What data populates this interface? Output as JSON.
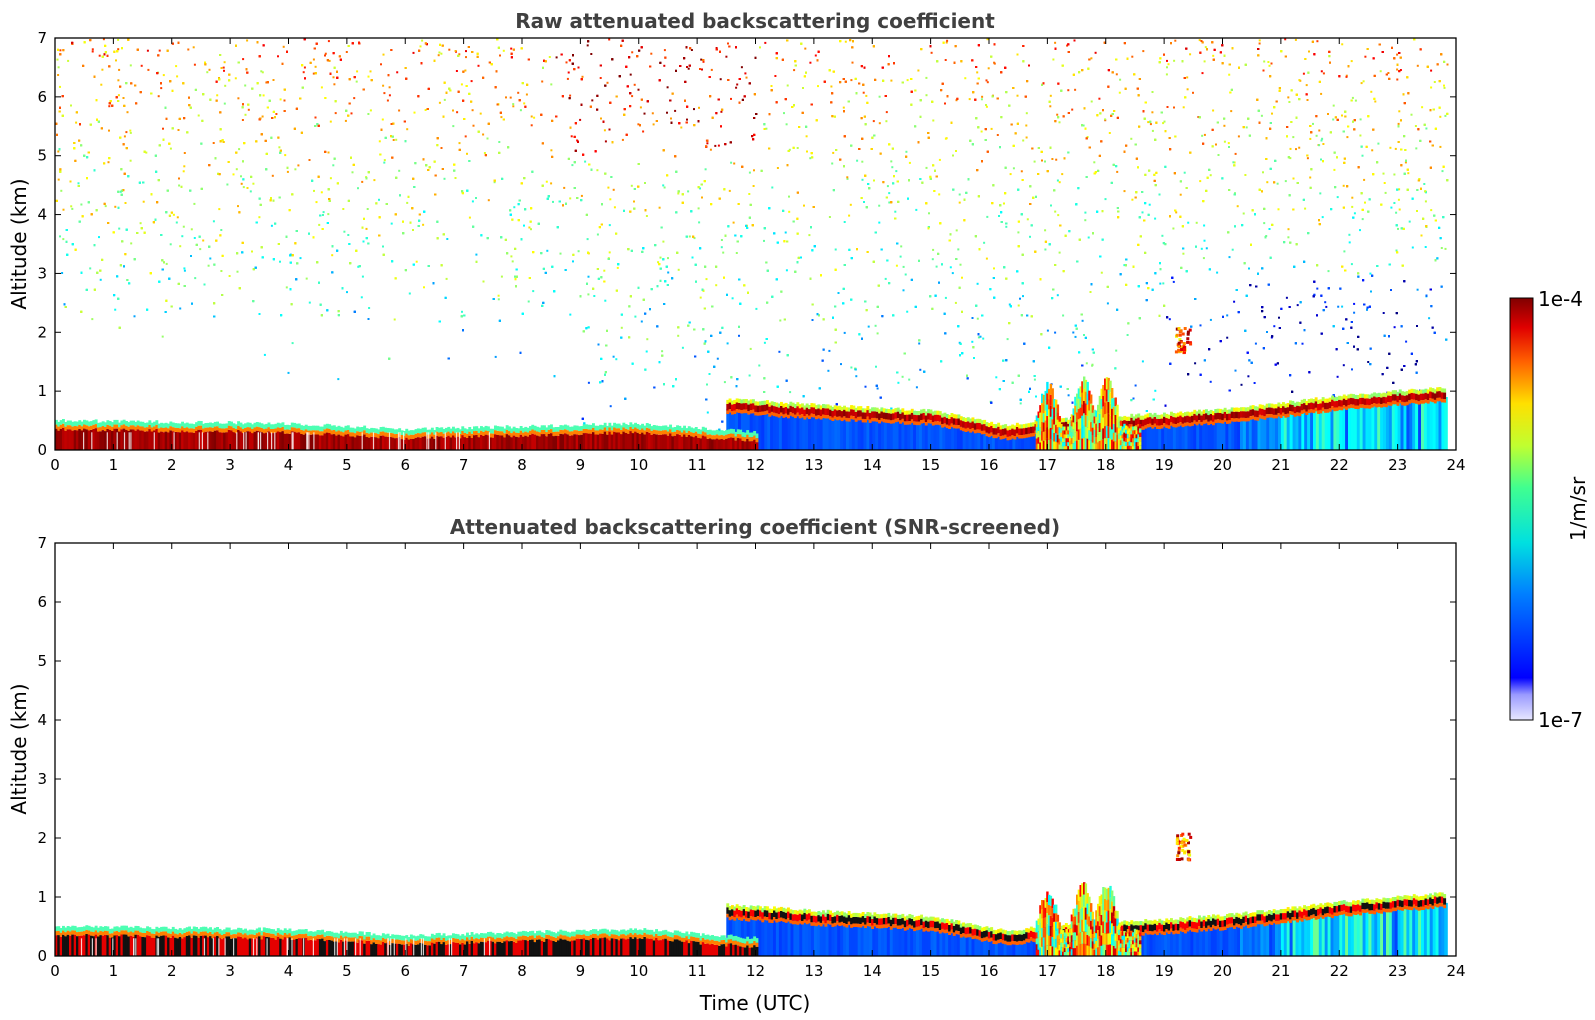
{
  "chart_data": [
    {
      "type": "heatmap",
      "title": "Raw attenuated backscattering coefficient",
      "xlabel": "",
      "ylabel": "Altitude (km)",
      "xlim": [
        0,
        24
      ],
      "ylim": [
        0,
        7
      ],
      "xticks": [
        "0",
        "1",
        "2",
        "3",
        "4",
        "5",
        "6",
        "7",
        "8",
        "9",
        "10",
        "11",
        "12",
        "13",
        "14",
        "15",
        "16",
        "17",
        "18",
        "19",
        "20",
        "21",
        "22",
        "23",
        "24"
      ],
      "yticks": [
        "0",
        "1",
        "2",
        "3",
        "4",
        "5",
        "6",
        "7"
      ],
      "grid": false,
      "features": {
        "surface_layer": [
          {
            "t": 0,
            "top_km": 0.5
          },
          {
            "t": 4,
            "top_km": 0.45
          },
          {
            "t": 6,
            "top_km": 0.35
          },
          {
            "t": 8,
            "top_km": 0.4
          },
          {
            "t": 10,
            "top_km": 0.45
          },
          {
            "t": 12,
            "top_km": 0.3
          }
        ],
        "elevated_layer": [
          {
            "t": 11.5,
            "km": 0.75
          },
          {
            "t": 13,
            "km": 0.65
          },
          {
            "t": 15,
            "km": 0.55
          },
          {
            "t": 16.3,
            "km": 0.3
          },
          {
            "t": 17,
            "km": 0.4
          },
          {
            "t": 19,
            "km": 0.5
          },
          {
            "t": 20.3,
            "km": 0.6
          },
          {
            "t": 22,
            "km": 0.8
          },
          {
            "t": 23.8,
            "km": 0.95
          }
        ],
        "convective_plumes": [
          {
            "t": 17.0,
            "top_km": 1.1
          },
          {
            "t": 17.6,
            "top_km": 1.2
          },
          {
            "t": 18.0,
            "top_km": 1.2
          }
        ],
        "isolated_cloud": {
          "t": 19.3,
          "km": 1.9
        },
        "noise_top_km": 7
      }
    },
    {
      "type": "heatmap",
      "title": "Attenuated backscattering coefficient (SNR-screened)",
      "xlabel": "Time (UTC)",
      "ylabel": "Altitude (km)",
      "xlim": [
        0,
        24
      ],
      "ylim": [
        0,
        7
      ],
      "xticks": [
        "0",
        "1",
        "2",
        "3",
        "4",
        "5",
        "6",
        "7",
        "8",
        "9",
        "10",
        "11",
        "12",
        "13",
        "14",
        "15",
        "16",
        "17",
        "18",
        "19",
        "20",
        "21",
        "22",
        "23",
        "24"
      ],
      "yticks": [
        "0",
        "1",
        "2",
        "3",
        "4",
        "5",
        "6",
        "7"
      ],
      "grid": false,
      "features": {
        "surface_layer": [
          {
            "t": 0,
            "top_km": 0.5
          },
          {
            "t": 4,
            "top_km": 0.45
          },
          {
            "t": 6,
            "top_km": 0.35
          },
          {
            "t": 8,
            "top_km": 0.4
          },
          {
            "t": 10,
            "top_km": 0.45
          },
          {
            "t": 12,
            "top_km": 0.3
          }
        ],
        "elevated_layer": [
          {
            "t": 11.5,
            "km": 0.75
          },
          {
            "t": 13,
            "km": 0.65
          },
          {
            "t": 15,
            "km": 0.55
          },
          {
            "t": 16.3,
            "km": 0.3
          },
          {
            "t": 17,
            "km": 0.4
          },
          {
            "t": 19,
            "km": 0.5
          },
          {
            "t": 20.3,
            "km": 0.6
          },
          {
            "t": 22,
            "km": 0.8
          },
          {
            "t": 23.8,
            "km": 0.95
          }
        ],
        "convective_plumes": [
          {
            "t": 17.0,
            "top_km": 1.1
          },
          {
            "t": 17.6,
            "top_km": 1.2
          },
          {
            "t": 18.0,
            "top_km": 1.2
          }
        ],
        "isolated_cloud": {
          "t": 19.3,
          "km": 1.9
        },
        "noise_top_km": 0
      }
    }
  ],
  "colorbar": {
    "label": "1/m/sr",
    "max_label": "1e-4",
    "min_label": "1e-7",
    "colormap": "jet",
    "scale": "log",
    "range": [
      1e-07,
      0.0001
    ]
  }
}
